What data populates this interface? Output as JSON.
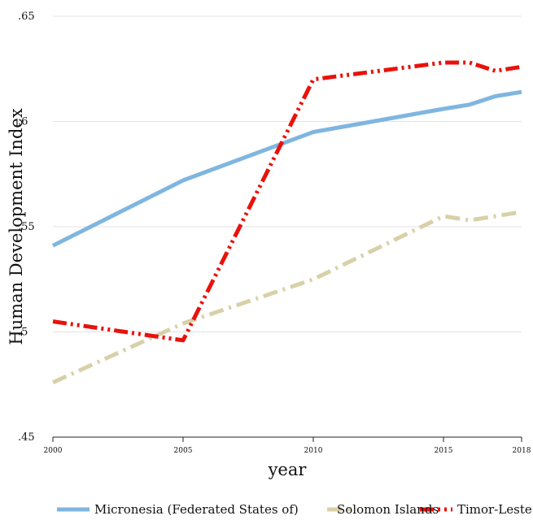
{
  "chart_data": {
    "type": "line",
    "title": "",
    "xlabel": "year",
    "ylabel": "Human Development Index",
    "xlim": [
      2000,
      2018
    ],
    "ylim": [
      0.45,
      0.65
    ],
    "grid": true,
    "legend_position": "bottom",
    "x_ticks": [
      2000,
      2005,
      2010,
      2015,
      2018
    ],
    "x_tick_labels": [
      "2000",
      "2005",
      "2010",
      "2015",
      "2018"
    ],
    "y_ticks": [
      0.45,
      0.5,
      0.55,
      0.6,
      0.65
    ],
    "y_tick_labels": [
      ".45",
      ".5",
      ".55",
      ".6",
      ".65"
    ],
    "series": [
      {
        "name": "Micronesia (Federated States of)",
        "color": "#7fb6e0",
        "dash": "solid",
        "x": [
          2000,
          2005,
          2010,
          2015,
          2016,
          2017,
          2018
        ],
        "y": [
          0.541,
          0.572,
          0.595,
          0.606,
          0.608,
          0.612,
          0.614
        ]
      },
      {
        "name": "Solomon Islands",
        "color": "#d8d1a8",
        "dash": "long-dash-dot",
        "x": [
          2000,
          2005,
          2010,
          2015,
          2016,
          2017,
          2018
        ],
        "y": [
          0.476,
          0.504,
          0.525,
          0.555,
          0.553,
          0.555,
          0.557
        ]
      },
      {
        "name": "Timor-Leste",
        "color": "#e8120c",
        "dash": "dash-dot-dot",
        "x": [
          2000,
          2005,
          2010,
          2015,
          2016,
          2017,
          2018
        ],
        "y": [
          0.505,
          0.496,
          0.62,
          0.628,
          0.628,
          0.624,
          0.626
        ]
      }
    ]
  }
}
